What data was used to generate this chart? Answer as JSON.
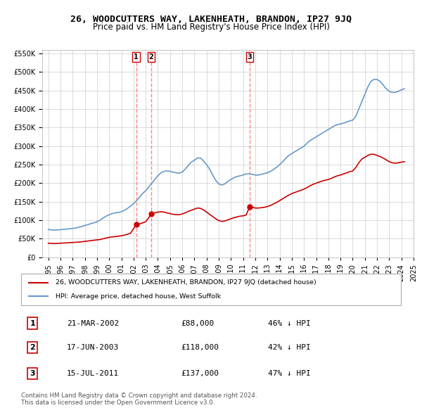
{
  "title1": "26, WOODCUTTERS WAY, LAKENHEATH, BRANDON, IP27 9JQ",
  "title2": "Price paid vs. HM Land Registry's House Price Index (HPI)",
  "legend_red": "26, WOODCUTTERS WAY, LAKENHEATH, BRANDON, IP27 9JQ (detached house)",
  "legend_blue": "HPI: Average price, detached house, West Suffolk",
  "footnote": "Contains HM Land Registry data © Crown copyright and database right 2024.\nThis data is licensed under the Open Government Licence v3.0.",
  "transactions": [
    {
      "num": 1,
      "date_label": "21-MAR-2002",
      "date_x": 2002.22,
      "price": 88000,
      "pct": "46% ↓ HPI"
    },
    {
      "num": 2,
      "date_label": "17-JUN-2003",
      "date_x": 2003.46,
      "price": 118000,
      "pct": "42% ↓ HPI"
    },
    {
      "num": 3,
      "date_label": "15-JUL-2011",
      "date_x": 2011.54,
      "price": 137000,
      "pct": "47% ↓ HPI"
    }
  ],
  "hpi_x": [
    1995.0,
    1995.25,
    1995.5,
    1995.75,
    1996.0,
    1996.25,
    1996.5,
    1996.75,
    1997.0,
    1997.25,
    1997.5,
    1997.75,
    1998.0,
    1998.25,
    1998.5,
    1998.75,
    1999.0,
    1999.25,
    1999.5,
    1999.75,
    2000.0,
    2000.25,
    2000.5,
    2000.75,
    2001.0,
    2001.25,
    2001.5,
    2001.75,
    2002.0,
    2002.25,
    2002.5,
    2002.75,
    2003.0,
    2003.25,
    2003.5,
    2003.75,
    2004.0,
    2004.25,
    2004.5,
    2004.75,
    2005.0,
    2005.25,
    2005.5,
    2005.75,
    2006.0,
    2006.25,
    2006.5,
    2006.75,
    2007.0,
    2007.25,
    2007.5,
    2007.75,
    2008.0,
    2008.25,
    2008.5,
    2008.75,
    2009.0,
    2009.25,
    2009.5,
    2009.75,
    2010.0,
    2010.25,
    2010.5,
    2010.75,
    2011.0,
    2011.25,
    2011.5,
    2011.75,
    2012.0,
    2012.25,
    2012.5,
    2012.75,
    2013.0,
    2013.25,
    2013.5,
    2013.75,
    2014.0,
    2014.25,
    2014.5,
    2014.75,
    2015.0,
    2015.25,
    2015.5,
    2015.75,
    2016.0,
    2016.25,
    2016.5,
    2016.75,
    2017.0,
    2017.25,
    2017.5,
    2017.75,
    2018.0,
    2018.25,
    2018.5,
    2018.75,
    2019.0,
    2019.25,
    2019.5,
    2019.75,
    2020.0,
    2020.25,
    2020.5,
    2020.75,
    2021.0,
    2021.25,
    2021.5,
    2021.75,
    2022.0,
    2022.25,
    2022.5,
    2022.75,
    2023.0,
    2023.25,
    2023.5,
    2023.75,
    2024.0,
    2024.25
  ],
  "hpi_y": [
    75000,
    74000,
    73500,
    74000,
    74500,
    75500,
    76000,
    77000,
    78000,
    79000,
    81000,
    83000,
    86000,
    88000,
    91000,
    93000,
    96000,
    100000,
    106000,
    111000,
    115000,
    118000,
    120000,
    121000,
    123000,
    127000,
    132000,
    138000,
    145000,
    153000,
    163000,
    172000,
    180000,
    190000,
    200000,
    210000,
    220000,
    228000,
    232000,
    233000,
    232000,
    230000,
    228000,
    227000,
    230000,
    238000,
    248000,
    257000,
    262000,
    268000,
    268000,
    260000,
    250000,
    238000,
    222000,
    208000,
    198000,
    195000,
    198000,
    205000,
    210000,
    215000,
    218000,
    220000,
    222000,
    225000,
    225000,
    224000,
    222000,
    222000,
    224000,
    226000,
    228000,
    232000,
    237000,
    243000,
    250000,
    258000,
    267000,
    275000,
    280000,
    285000,
    290000,
    295000,
    300000,
    308000,
    315000,
    320000,
    325000,
    330000,
    335000,
    340000,
    345000,
    350000,
    355000,
    358000,
    360000,
    362000,
    365000,
    368000,
    370000,
    380000,
    400000,
    420000,
    440000,
    460000,
    475000,
    480000,
    480000,
    475000,
    465000,
    455000,
    448000,
    445000,
    445000,
    448000,
    452000,
    455000
  ],
  "red_x": [
    1995.0,
    1995.25,
    1995.5,
    1995.75,
    1996.0,
    1996.25,
    1996.5,
    1996.75,
    1997.0,
    1997.25,
    1997.5,
    1997.75,
    1998.0,
    1998.25,
    1998.5,
    1998.75,
    1999.0,
    1999.25,
    1999.5,
    1999.75,
    2000.0,
    2000.25,
    2000.5,
    2000.75,
    2001.0,
    2001.25,
    2001.5,
    2001.75,
    2002.22,
    2002.5,
    2002.75,
    2003.0,
    2003.25,
    2003.46,
    2003.75,
    2004.0,
    2004.25,
    2004.5,
    2004.75,
    2005.0,
    2005.25,
    2005.5,
    2005.75,
    2006.0,
    2006.25,
    2006.5,
    2006.75,
    2007.0,
    2007.25,
    2007.5,
    2007.75,
    2008.0,
    2008.25,
    2008.5,
    2008.75,
    2009.0,
    2009.25,
    2009.5,
    2009.75,
    2010.0,
    2010.25,
    2010.5,
    2010.75,
    2011.0,
    2011.25,
    2011.54,
    2011.75,
    2012.0,
    2012.25,
    2012.5,
    2012.75,
    2013.0,
    2013.25,
    2013.5,
    2013.75,
    2014.0,
    2014.25,
    2014.5,
    2014.75,
    2015.0,
    2015.25,
    2015.5,
    2015.75,
    2016.0,
    2016.25,
    2016.5,
    2016.75,
    2017.0,
    2017.25,
    2017.5,
    2017.75,
    2018.0,
    2018.25,
    2018.5,
    2018.75,
    2019.0,
    2019.25,
    2019.5,
    2019.75,
    2020.0,
    2020.25,
    2020.5,
    2020.75,
    2021.0,
    2021.25,
    2021.5,
    2021.75,
    2022.0,
    2022.25,
    2022.5,
    2022.75,
    2023.0,
    2023.25,
    2023.5,
    2023.75,
    2024.0,
    2024.25
  ],
  "red_y": [
    38000,
    37500,
    37000,
    37500,
    38000,
    38500,
    39000,
    39500,
    40000,
    40500,
    41000,
    42000,
    43000,
    44000,
    45000,
    46000,
    47000,
    48000,
    50000,
    52000,
    54000,
    55000,
    56000,
    57000,
    58000,
    60000,
    62000,
    65000,
    88000,
    90000,
    93000,
    96000,
    107000,
    118000,
    120000,
    122000,
    123000,
    122000,
    120000,
    118000,
    116000,
    115000,
    115000,
    117000,
    120000,
    124000,
    127000,
    130000,
    133000,
    132000,
    128000,
    122000,
    116000,
    110000,
    104000,
    99000,
    97000,
    98000,
    101000,
    104000,
    107000,
    109000,
    111000,
    112000,
    114000,
    137000,
    135000,
    133000,
    133000,
    134000,
    135000,
    137000,
    140000,
    144000,
    148000,
    153000,
    158000,
    163000,
    168000,
    172000,
    175000,
    178000,
    181000,
    184000,
    188000,
    193000,
    197000,
    200000,
    203000,
    206000,
    208000,
    210000,
    213000,
    217000,
    220000,
    222000,
    225000,
    228000,
    231000,
    233000,
    242000,
    255000,
    265000,
    270000,
    275000,
    278000,
    278000,
    275000,
    272000,
    268000,
    263000,
    258000,
    255000,
    254000,
    255000,
    257000,
    258000
  ],
  "xlim": [
    1994.5,
    2024.75
  ],
  "ylim": [
    0,
    560000
  ],
  "yticks": [
    0,
    50000,
    100000,
    150000,
    200000,
    250000,
    300000,
    350000,
    400000,
    450000,
    500000,
    550000
  ],
  "xtick_years": [
    1995,
    1996,
    1997,
    1998,
    1999,
    2000,
    2001,
    2002,
    2003,
    2004,
    2005,
    2006,
    2007,
    2008,
    2009,
    2010,
    2011,
    2012,
    2013,
    2014,
    2015,
    2016,
    2017,
    2018,
    2019,
    2020,
    2021,
    2022,
    2023,
    2024,
    2025
  ],
  "colors": {
    "red": "#cc0000",
    "blue": "#6699cc",
    "grid": "#cccccc",
    "vline": "#ff6666",
    "background_legend": "#ffffff",
    "marker_red": "#cc0000",
    "box_border": "#cc0000"
  }
}
